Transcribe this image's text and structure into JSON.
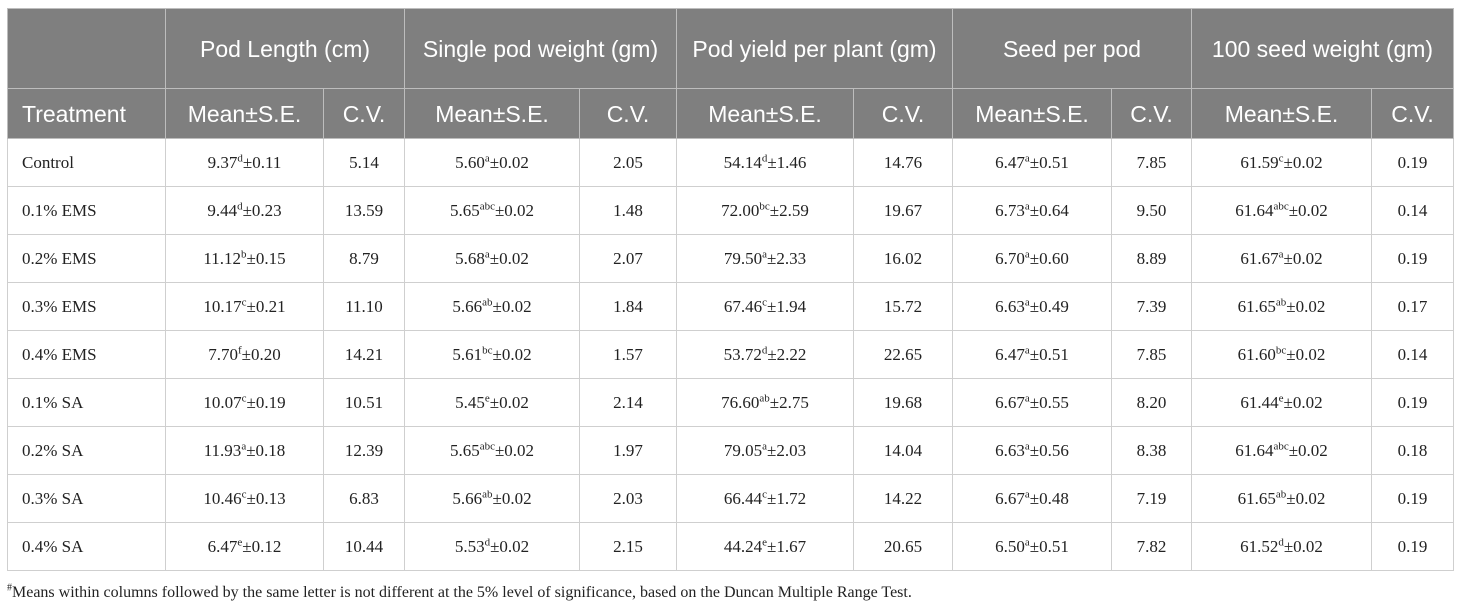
{
  "header": {
    "groups": [
      "Pod Length (cm)",
      "Single pod weight (gm)",
      "Pod yield per plant (gm)",
      "Seed per pod",
      "100 seed weight (gm)"
    ],
    "treatment_label": "Treatment",
    "mean_label": "Mean±S.E.",
    "cv_label": "C.V."
  },
  "rows": [
    {
      "treatment": "Control",
      "cells": [
        {
          "mean": "9.37",
          "sup": "d",
          "se": "±0.11",
          "cv": "5.14"
        },
        {
          "mean": "5.60",
          "sup": "a",
          "se": "±0.02",
          "cv": "2.05"
        },
        {
          "mean": "54.14",
          "sup": "d",
          "se": "±1.46",
          "cv": "14.76"
        },
        {
          "mean": "6.47",
          "sup": "a",
          "se": "±0.51",
          "cv": "7.85"
        },
        {
          "mean": "61.59",
          "sup": "c",
          "se": "±0.02",
          "cv": "0.19"
        }
      ]
    },
    {
      "treatment": "0.1% EMS",
      "cells": [
        {
          "mean": "9.44",
          "sup": "d",
          "se": "±0.23",
          "cv": "13.59"
        },
        {
          "mean": "5.65",
          "sup": "abc",
          "se": "±0.02",
          "cv": "1.48"
        },
        {
          "mean": "72.00",
          "sup": "bc",
          "se": "±2.59",
          "cv": "19.67"
        },
        {
          "mean": "6.73",
          "sup": "a",
          "se": "±0.64",
          "cv": "9.50"
        },
        {
          "mean": "61.64",
          "sup": "abc",
          "se": "±0.02",
          "cv": "0.14"
        }
      ]
    },
    {
      "treatment": "0.2% EMS",
      "cells": [
        {
          "mean": "11.12",
          "sup": "b",
          "se": "±0.15",
          "cv": "8.79"
        },
        {
          "mean": "5.68",
          "sup": "a",
          "se": "±0.02",
          "cv": "2.07"
        },
        {
          "mean": "79.50",
          "sup": "a",
          "se": "±2.33",
          "cv": "16.02"
        },
        {
          "mean": "6.70",
          "sup": "a",
          "se": "±0.60",
          "cv": "8.89"
        },
        {
          "mean": "61.67",
          "sup": "a",
          "se": "±0.02",
          "cv": "0.19"
        }
      ]
    },
    {
      "treatment": "0.3% EMS",
      "cells": [
        {
          "mean": "10.17",
          "sup": "c",
          "se": "±0.21",
          "cv": "11.10"
        },
        {
          "mean": "5.66",
          "sup": "ab",
          "se": "±0.02",
          "cv": "1.84"
        },
        {
          "mean": "67.46",
          "sup": "c",
          "se": "±1.94",
          "cv": "15.72"
        },
        {
          "mean": "6.63",
          "sup": "a",
          "se": "±0.49",
          "cv": "7.39"
        },
        {
          "mean": "61.65",
          "sup": "ab",
          "se": "±0.02",
          "cv": "0.17"
        }
      ]
    },
    {
      "treatment": "0.4% EMS",
      "cells": [
        {
          "mean": "7.70",
          "sup": "f",
          "se": "±0.20",
          "cv": "14.21"
        },
        {
          "mean": "5.61",
          "sup": "bc",
          "se": "±0.02",
          "cv": "1.57"
        },
        {
          "mean": "53.72",
          "sup": "d",
          "se": "±2.22",
          "cv": "22.65"
        },
        {
          "mean": "6.47",
          "sup": "a",
          "se": "±0.51",
          "cv": "7.85"
        },
        {
          "mean": "61.60",
          "sup": "bc",
          "se": "±0.02",
          "cv": "0.14"
        }
      ]
    },
    {
      "treatment": "0.1% SA",
      "cells": [
        {
          "mean": "10.07",
          "sup": "c",
          "se": "±0.19",
          "cv": "10.51"
        },
        {
          "mean": "5.45",
          "sup": "e",
          "se": "±0.02",
          "cv": "2.14"
        },
        {
          "mean": "76.60",
          "sup": "ab",
          "se": "±2.75",
          "cv": "19.68"
        },
        {
          "mean": "6.67",
          "sup": "a",
          "se": "±0.55",
          "cv": "8.20"
        },
        {
          "mean": "61.44",
          "sup": "e",
          "se": "±0.02",
          "cv": "0.19"
        }
      ]
    },
    {
      "treatment": "0.2% SA",
      "cells": [
        {
          "mean": "11.93",
          "sup": "a",
          "se": "±0.18",
          "cv": "12.39"
        },
        {
          "mean": "5.65",
          "sup": "abc",
          "se": "±0.02",
          "cv": "1.97"
        },
        {
          "mean": "79.05",
          "sup": "a",
          "se": "±2.03",
          "cv": "14.04"
        },
        {
          "mean": "6.63",
          "sup": "a",
          "se": "±0.56",
          "cv": "8.38"
        },
        {
          "mean": "61.64",
          "sup": "abc",
          "se": "±0.02",
          "cv": "0.18"
        }
      ]
    },
    {
      "treatment": "0.3% SA",
      "cells": [
        {
          "mean": "10.46",
          "sup": "c",
          "se": "±0.13",
          "cv": "6.83"
        },
        {
          "mean": "5.66",
          "sup": "ab",
          "se": "±0.02",
          "cv": "2.03"
        },
        {
          "mean": "66.44",
          "sup": "c",
          "se": "±1.72",
          "cv": "14.22"
        },
        {
          "mean": "6.67",
          "sup": "a",
          "se": "±0.48",
          "cv": "7.19"
        },
        {
          "mean": "61.65",
          "sup": "ab",
          "se": "±0.02",
          "cv": "0.19"
        }
      ]
    },
    {
      "treatment": "0.4% SA",
      "cells": [
        {
          "mean": "6.47",
          "sup": "e",
          "se": "±0.12",
          "cv": "10.44"
        },
        {
          "mean": "5.53",
          "sup": "d",
          "se": "±0.02",
          "cv": "2.15"
        },
        {
          "mean": "44.24",
          "sup": "e",
          "se": "±1.67",
          "cv": "20.65"
        },
        {
          "mean": "6.50",
          "sup": "a",
          "se": "±0.51",
          "cv": "7.82"
        },
        {
          "mean": "61.52",
          "sup": "d",
          "se": "±0.02",
          "cv": "0.19"
        }
      ]
    }
  ],
  "footnote": {
    "marker": "#",
    "text": "Means within columns followed by the same letter is not different at the 5% level of significance, based on the Duncan Multiple Range Test."
  }
}
